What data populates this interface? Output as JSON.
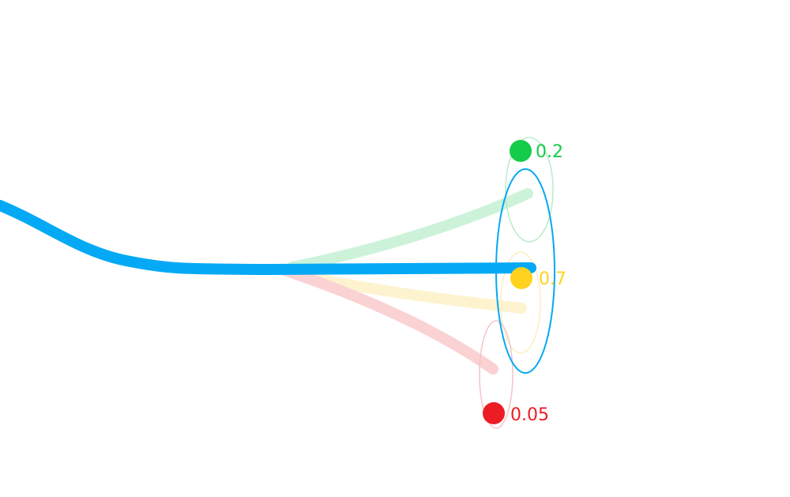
{
  "colors": {
    "main_path": "#03a9f4",
    "branch_high": "#ffd21f",
    "branch_mid": "#14cc4a",
    "branch_low": "#ec1c24",
    "branch_high_faded": "#fdf3cf",
    "branch_mid_faded": "#ccf3da",
    "branch_low_faded": "#fad2d4",
    "ellipse_high_faded": "#fbeec0",
    "ellipse_mid_faded": "#b9ecc8",
    "ellipse_low_faded": "#f5c3c6"
  },
  "branches": {
    "mid": {
      "probability": "0.2"
    },
    "high": {
      "probability": "0.7"
    },
    "low": {
      "probability": "0.05"
    }
  }
}
